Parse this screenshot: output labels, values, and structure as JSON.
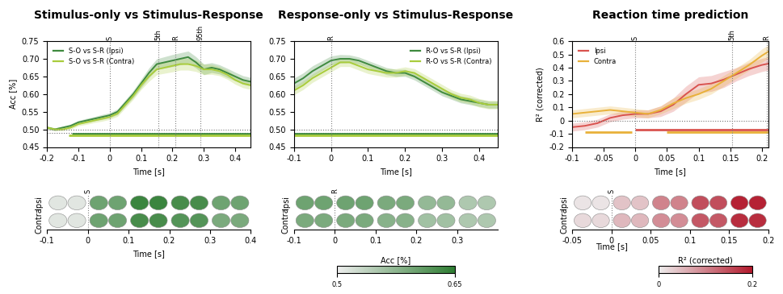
{
  "chart_data": [
    {
      "type": "line",
      "title": "Stimulus-only vs Stimulus-Response",
      "x_label": "Time [s]",
      "y_label": "Acc [%]",
      "xlim": [
        -0.2,
        0.45
      ],
      "xticks": [
        -0.2,
        -0.1,
        0,
        0.1,
        0.2,
        0.3,
        0.4
      ],
      "ylim": [
        0.45,
        0.75
      ],
      "yticks": [
        {
          "value": 0.45,
          "label": "0.45"
        },
        {
          "value": 0.5,
          "label": "0.50"
        },
        {
          "value": 0.55,
          "label": "0.55"
        },
        {
          "value": 0.6,
          "label": "0.60"
        },
        {
          "value": 0.65,
          "label": "0.65"
        },
        {
          "value": 0.7,
          "label": "0.70"
        },
        {
          "value": 0.75,
          "label": "0.75"
        }
      ],
      "legend": "upper left",
      "x": [
        -0.2,
        -0.175,
        -0.15,
        -0.125,
        -0.1,
        -0.075,
        -0.05,
        -0.025,
        0,
        0.025,
        0.05,
        0.075,
        0.1,
        0.125,
        0.15,
        0.175,
        0.2,
        0.225,
        0.25,
        0.275,
        0.3,
        0.325,
        0.35,
        0.375,
        0.4,
        0.425,
        0.45
      ],
      "series": [
        {
          "name": "S-O vs S-R (Ipsi)",
          "color": "#3f8a3f",
          "line_style": "solid",
          "values": [
            0.505,
            0.5,
            0.505,
            0.51,
            0.52,
            0.525,
            0.53,
            0.535,
            0.54,
            0.55,
            0.575,
            0.6,
            0.63,
            0.66,
            0.685,
            0.69,
            0.695,
            0.7,
            0.705,
            0.69,
            0.67,
            0.675,
            0.67,
            0.66,
            0.65,
            0.64,
            0.635
          ],
          "error": [
            0.004,
            0.004,
            0.004,
            0.005,
            0.005,
            0.006,
            0.006,
            0.007,
            0.007,
            0.008,
            0.009,
            0.01,
            0.012,
            0.014,
            0.015,
            0.016,
            0.017,
            0.017,
            0.017,
            0.016,
            0.015,
            0.014,
            0.013,
            0.013,
            0.012,
            0.012,
            0.012
          ]
        },
        {
          "name": "S-O vs S-R (Contra)",
          "color": "#a9cc3c",
          "line_style": "solid",
          "values": [
            0.505,
            0.5,
            0.5,
            0.505,
            0.515,
            0.52,
            0.525,
            0.53,
            0.535,
            0.545,
            0.57,
            0.595,
            0.625,
            0.65,
            0.67,
            0.675,
            0.68,
            0.685,
            0.685,
            0.68,
            0.67,
            0.67,
            0.665,
            0.655,
            0.64,
            0.63,
            0.625
          ],
          "error": [
            0.004,
            0.004,
            0.004,
            0.005,
            0.005,
            0.006,
            0.006,
            0.007,
            0.007,
            0.008,
            0.009,
            0.01,
            0.012,
            0.014,
            0.015,
            0.016,
            0.017,
            0.017,
            0.017,
            0.016,
            0.015,
            0.014,
            0.013,
            0.013,
            0.012,
            0.012,
            0.012
          ]
        }
      ],
      "reference_lines": [
        0.5,
        0.49
      ],
      "annotations": [
        {
          "x": 0,
          "label": "S"
        },
        {
          "x": 0.155,
          "label": "5th"
        },
        {
          "x": 0.21,
          "label": "R"
        },
        {
          "x": 0.29,
          "label": "95th"
        }
      ],
      "significance": [
        {
          "color": "#3f8a3f",
          "start": -0.12,
          "end": 0.45,
          "y": 0.487
        },
        {
          "color": "#a9cc3c",
          "start": -0.13,
          "end": 0.45,
          "y": 0.482
        }
      ]
    },
    {
      "type": "line",
      "title": "Response-only vs Stimulus-Response",
      "x_label": "Time [s]",
      "xlim": [
        -0.1,
        0.45
      ],
      "xticks": [
        -0.1,
        0,
        0.1,
        0.2,
        0.3,
        0.4
      ],
      "ylim": [
        0.45,
        0.75
      ],
      "yticks": [
        {
          "value": 0.45,
          "label": "0.45"
        },
        {
          "value": 0.5,
          "label": "0.50"
        },
        {
          "value": 0.55,
          "label": "0.55"
        },
        {
          "value": 0.6,
          "label": "0.60"
        },
        {
          "value": 0.65,
          "label": "0.65"
        },
        {
          "value": 0.7,
          "label": "0.70"
        },
        {
          "value": 0.75,
          "label": "0.75"
        }
      ],
      "legend": "upper right",
      "x": [
        -0.1,
        -0.075,
        -0.05,
        -0.025,
        0,
        0.025,
        0.05,
        0.075,
        0.1,
        0.125,
        0.15,
        0.175,
        0.2,
        0.225,
        0.25,
        0.275,
        0.3,
        0.325,
        0.35,
        0.375,
        0.4,
        0.425,
        0.45
      ],
      "series": [
        {
          "name": "R-O vs S-R (Ipsi)",
          "color": "#3f8a3f",
          "line_style": "solid",
          "values": [
            0.63,
            0.645,
            0.665,
            0.68,
            0.695,
            0.7,
            0.7,
            0.695,
            0.685,
            0.675,
            0.665,
            0.66,
            0.66,
            0.65,
            0.635,
            0.62,
            0.605,
            0.595,
            0.585,
            0.58,
            0.575,
            0.57,
            0.57
          ],
          "error": [
            0.015,
            0.015,
            0.015,
            0.014,
            0.013,
            0.012,
            0.011,
            0.01,
            0.01,
            0.01,
            0.01,
            0.01,
            0.01,
            0.01,
            0.01,
            0.01,
            0.01,
            0.01,
            0.01,
            0.01,
            0.01,
            0.01,
            0.01
          ]
        },
        {
          "name": "R-O vs S-R (Contra)",
          "color": "#a9cc3c",
          "line_style": "solid",
          "values": [
            0.61,
            0.625,
            0.645,
            0.66,
            0.675,
            0.69,
            0.69,
            0.68,
            0.67,
            0.665,
            0.66,
            0.66,
            0.665,
            0.66,
            0.645,
            0.63,
            0.615,
            0.6,
            0.59,
            0.585,
            0.575,
            0.57,
            0.57
          ],
          "error": [
            0.012,
            0.012,
            0.012,
            0.012,
            0.012,
            0.012,
            0.012,
            0.012,
            0.012,
            0.012,
            0.012,
            0.012,
            0.012,
            0.012,
            0.012,
            0.012,
            0.012,
            0.012,
            0.012,
            0.012,
            0.012,
            0.012,
            0.012
          ]
        }
      ],
      "reference_lines": [
        0.5,
        0.49
      ],
      "annotations": [
        {
          "x": 0,
          "label": "R"
        }
      ],
      "significance": [
        {
          "color": "#3f8a3f",
          "start": -0.1,
          "end": 0.45,
          "y": 0.487
        },
        {
          "color": "#a9cc3c",
          "start": -0.1,
          "end": 0.45,
          "y": 0.482
        }
      ]
    },
    {
      "type": "line",
      "title": "Reaction time prediction",
      "x_label": "Time [s]",
      "y_label": "R² (corrected)",
      "xlim": [
        -0.1,
        0.21
      ],
      "xticks": [
        -0.1,
        -0.05,
        0,
        0.05,
        0.1,
        0.15,
        0.2
      ],
      "ylim": [
        -0.2,
        0.6
      ],
      "yticks": [
        -0.2,
        -0.1,
        0,
        0.1,
        0.2,
        0.3,
        0.4,
        0.5,
        0.6
      ],
      "legend": "upper left",
      "x": [
        -0.1,
        -0.08,
        -0.06,
        -0.04,
        -0.02,
        0,
        0.02,
        0.04,
        0.06,
        0.08,
        0.1,
        0.12,
        0.14,
        0.16,
        0.18,
        0.2,
        0.21
      ],
      "series": [
        {
          "name": "Ipsi",
          "color": "#d9534f",
          "line_style": "solid",
          "values": [
            -0.05,
            -0.04,
            -0.02,
            0.02,
            0.04,
            0.05,
            0.05,
            0.07,
            0.12,
            0.2,
            0.27,
            0.28,
            0.31,
            0.35,
            0.39,
            0.42,
            0.43
          ],
          "error": [
            0.03,
            0.03,
            0.03,
            0.03,
            0.03,
            0.03,
            0.03,
            0.04,
            0.05,
            0.06,
            0.06,
            0.06,
            0.06,
            0.05,
            0.05,
            0.05,
            0.05
          ]
        },
        {
          "name": "Contra",
          "color": "#e8b13a",
          "line_style": "solid",
          "values": [
            0.05,
            0.06,
            0.07,
            0.08,
            0.07,
            0.06,
            0.05,
            0.08,
            0.13,
            0.17,
            0.2,
            0.24,
            0.3,
            0.36,
            0.42,
            0.49,
            0.52
          ],
          "error": [
            0.03,
            0.03,
            0.03,
            0.03,
            0.03,
            0.03,
            0.03,
            0.03,
            0.04,
            0.04,
            0.04,
            0.04,
            0.04,
            0.04,
            0.04,
            0.05,
            0.05
          ]
        }
      ],
      "reference_lines": [
        0
      ],
      "annotations": [
        {
          "x": 0,
          "label": "S"
        },
        {
          "x": 0.153,
          "label": "5th"
        },
        {
          "x": 0.208,
          "label": "R"
        }
      ],
      "significance": [
        {
          "color": "#d9534f",
          "start": 0,
          "end": 0.21,
          "y": -0.07
        },
        {
          "color": "#e8b13a",
          "start": -0.08,
          "end": -0.005,
          "y": -0.09
        },
        {
          "color": "#e8b13a",
          "start": 0.05,
          "end": 0.21,
          "y": -0.09
        }
      ]
    }
  ],
  "brain_maps": [
    {
      "color": "#2e7d32",
      "clim": [
        0.5,
        0.65
      ],
      "x_label": "Time [s]",
      "xlim": [
        -0.1,
        0.4
      ],
      "xticks": [
        -0.1,
        0,
        0.1,
        0.2,
        0.3,
        0.4
      ],
      "annotation": {
        "x": 0,
        "label": "S"
      },
      "times": [
        -0.05,
        0.05,
        0.15,
        0.25,
        0.35
      ],
      "rows": [
        {
          "name": "Ipsi",
          "values": [
            0.51,
            0.6,
            0.64,
            0.63,
            0.6
          ]
        },
        {
          "name": "Contra",
          "values": [
            0.51,
            0.6,
            0.63,
            0.62,
            0.59
          ]
        }
      ]
    },
    {
      "color": "#2e7d32",
      "clim": [
        0.5,
        0.65
      ],
      "xlim": [
        -0.1,
        0.4
      ],
      "xticks": [
        -0.1,
        0,
        0.1,
        0.2,
        0.3
      ],
      "annotation": {
        "x": 0,
        "label": "R"
      },
      "times": [
        -0.05,
        0.05,
        0.15,
        0.25,
        0.35
      ],
      "rows": [
        {
          "name": "Ipsi",
          "values": [
            0.6,
            0.6,
            0.59,
            0.57,
            0.55
          ]
        },
        {
          "name": "Contra",
          "values": [
            0.59,
            0.59,
            0.58,
            0.56,
            0.55
          ]
        }
      ],
      "colorbar": {
        "label": "Acc [%]",
        "ticks": [
          0.5,
          0.65
        ]
      }
    },
    {
      "color": "#b2182b",
      "clim": [
        0,
        0.2
      ],
      "x_label": "Time [s]",
      "xlim": [
        -0.05,
        0.2
      ],
      "xticks": [
        -0.05,
        0,
        0.05,
        0.1,
        0.15,
        0.2
      ],
      "annotation": {
        "x": 0,
        "label": "S"
      },
      "times": [
        -0.025,
        0.025,
        0.075,
        0.125,
        0.175
      ],
      "rows": [
        {
          "name": "Ipsi",
          "values": [
            0.01,
            0.04,
            0.1,
            0.15,
            0.19
          ]
        },
        {
          "name": "Contra",
          "values": [
            0.02,
            0.05,
            0.09,
            0.14,
            0.18
          ]
        }
      ],
      "colorbar": {
        "label": "R² (corrected)",
        "ticks": [
          0,
          0.2
        ]
      }
    }
  ]
}
